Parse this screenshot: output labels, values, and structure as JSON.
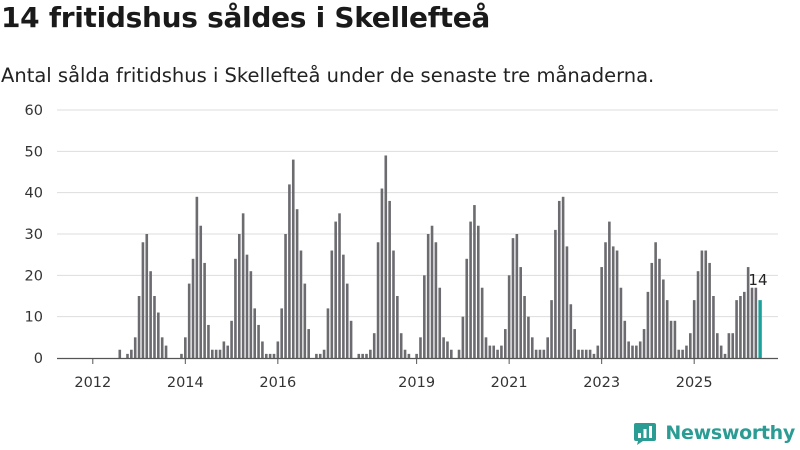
{
  "title": "14 fritidshus såldes i Skellefteå",
  "subtitle": "Antal sålda fritidshus i Skellefteå under de senaste tre månaderna.",
  "brand": {
    "name": "Newsworthy",
    "icon": "newsworthy-logo-icon"
  },
  "colors": {
    "bar": "#6b6b70",
    "highlight": "#1aa19b",
    "grid": "#dddddd",
    "axis": "#555555"
  },
  "chart_data": {
    "type": "bar",
    "ylim": [
      0,
      60
    ],
    "yticks": [
      0,
      10,
      20,
      30,
      40,
      50,
      60
    ],
    "xtick_labels": [
      "2012",
      "2014",
      "2016",
      "2019",
      "2021",
      "2023",
      "2025"
    ],
    "grid": true,
    "start_period": "2011-12",
    "values": [
      0,
      0,
      0,
      0,
      0,
      0,
      0,
      0,
      2,
      0,
      1,
      2,
      5,
      15,
      28,
      30,
      21,
      15,
      11,
      5,
      3,
      0,
      0,
      0,
      1,
      5,
      18,
      24,
      39,
      32,
      23,
      8,
      2,
      2,
      2,
      4,
      3,
      9,
      24,
      30,
      35,
      25,
      21,
      12,
      8,
      4,
      1,
      1,
      1,
      4,
      12,
      30,
      42,
      48,
      36,
      26,
      18,
      7,
      0,
      1,
      1,
      2,
      12,
      26,
      33,
      35,
      25,
      18,
      9,
      0,
      1,
      1,
      1,
      2,
      6,
      28,
      41,
      49,
      38,
      26,
      15,
      6,
      2,
      1,
      0,
      1,
      5,
      20,
      30,
      32,
      28,
      17,
      5,
      4,
      2,
      0,
      2,
      10,
      24,
      33,
      37,
      32,
      17,
      5,
      3,
      3,
      2,
      3,
      7,
      20,
      29,
      30,
      22,
      15,
      10,
      5,
      2,
      2,
      2,
      5,
      14,
      31,
      38,
      39,
      27,
      13,
      7,
      2,
      2,
      2,
      2,
      1,
      3,
      22,
      28,
      33,
      27,
      26,
      17,
      9,
      4,
      3,
      3,
      4,
      7,
      16,
      23,
      28,
      24,
      19,
      14,
      9,
      9,
      2,
      2,
      3,
      6,
      14,
      21,
      26,
      26,
      23,
      15,
      6,
      3,
      1,
      6,
      6,
      14,
      15,
      16,
      22,
      17,
      17,
      14
    ],
    "highlight_label": "14"
  }
}
